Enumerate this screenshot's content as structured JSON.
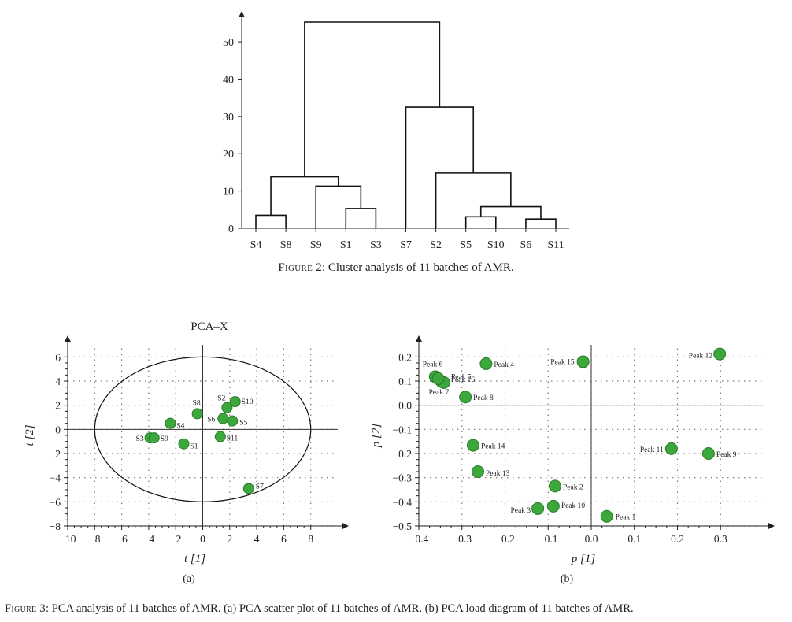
{
  "figure2": {
    "caption_label": "Figure 2",
    "caption_text": ": Cluster analysis of 11 batches of AMR.",
    "chart_data": {
      "type": "dendrogram",
      "leaves": [
        "S4",
        "S8",
        "S9",
        "S1",
        "S3",
        "S7",
        "S2",
        "S5",
        "S10",
        "S6",
        "S11"
      ],
      "ylim": [
        0,
        57
      ],
      "yticks": [
        0,
        10,
        20,
        30,
        40,
        50
      ],
      "merges": [
        {
          "a": "S4",
          "b": "S8",
          "height": 3.5
        },
        {
          "a": "S1",
          "b": "S3",
          "height": 5.3
        },
        {
          "a": "S5",
          "b": "S10",
          "height": 3.1
        },
        {
          "a": "S6",
          "b": "S11",
          "height": 2.5
        },
        {
          "a": "S5+S10",
          "b": "S6+S11",
          "height": 5.8
        },
        {
          "a": "S9",
          "b": "S1+S3",
          "height": 11.3
        },
        {
          "a": "S4+S8",
          "b": "S9+S1+S3",
          "height": 13.8
        },
        {
          "a": "S2",
          "b": "S5+S10+S6+S11",
          "height": 14.8
        },
        {
          "a": "S7",
          "b": "S2+S5+S10+S6+S11",
          "height": 32.5
        },
        {
          "a": "S4..S3",
          "b": "S7..S11",
          "height": 55.3
        }
      ]
    }
  },
  "figure3": {
    "caption_label": "Figure 3",
    "caption_text": ": PCA analysis of 11 batches of AMR. (a) PCA scatter plot of 11 batches of AMR. (b) PCA load diagram of 11 batches of AMR.",
    "panels": [
      {
        "panel_label": "(a)",
        "chart_data": {
          "type": "scatter",
          "title": "PCA–X",
          "xlabel": "t [1]",
          "ylabel": "t [2]",
          "xlim": [
            -10,
            10
          ],
          "ylim": [
            -8,
            7
          ],
          "xticks": [
            -10,
            -8,
            -6,
            -4,
            -2,
            0,
            2,
            4,
            6,
            8
          ],
          "yticks": [
            -8,
            -6,
            -4,
            -2,
            0,
            2,
            4,
            6
          ],
          "grid": "dotted",
          "ellipse": {
            "center": [
              0,
              0
            ],
            "rx": 8,
            "ry": 6
          },
          "points": [
            {
              "label": "S3",
              "x": -3.9,
              "y": -0.7
            },
            {
              "label": "S9",
              "x": -3.6,
              "y": -0.7
            },
            {
              "label": "S4",
              "x": -2.4,
              "y": 0.5
            },
            {
              "label": "S1",
              "x": -1.4,
              "y": -1.2
            },
            {
              "label": "S8",
              "x": -0.4,
              "y": 1.3
            },
            {
              "label": "S2",
              "x": 1.8,
              "y": 1.8
            },
            {
              "label": "S10",
              "x": 2.4,
              "y": 2.3
            },
            {
              "label": "S6",
              "x": 1.5,
              "y": 0.9
            },
            {
              "label": "S5",
              "x": 2.2,
              "y": 0.7
            },
            {
              "label": "S11",
              "x": 1.3,
              "y": -0.6
            },
            {
              "label": "S7",
              "x": 3.4,
              "y": -4.9
            }
          ]
        }
      },
      {
        "panel_label": "(b)",
        "chart_data": {
          "type": "scatter",
          "title": "",
          "xlabel": "p [1]",
          "ylabel": "p [2]",
          "xlim": [
            -0.4,
            0.4
          ],
          "ylim": [
            -0.5,
            0.25
          ],
          "xticks": [
            -0.4,
            -0.3,
            -0.2,
            -0.1,
            0.0,
            0.1,
            0.2,
            0.3
          ],
          "xtick_labels": [
            "−0.4",
            "−0.3",
            "−0.2",
            "−0.1",
            "0.0",
            "0.1",
            "0.2",
            "0.3"
          ],
          "yticks": [
            -0.5,
            -0.4,
            -0.3,
            -0.2,
            -0.1,
            0.0,
            0.1,
            0.2
          ],
          "ytick_labels": [
            "−0.5",
            "−0.4",
            "−0.3",
            "−0.2",
            "−0.1",
            "0.0",
            "0.1",
            "0.2"
          ],
          "grid": "dotted",
          "points": [
            {
              "label": "Peak 6",
              "x": -0.362,
              "y": 0.118
            },
            {
              "label": "Peak 5",
              "x": -0.347,
              "y": 0.098
            },
            {
              "label": "Peak 16",
              "x": -0.342,
              "y": 0.094
            },
            {
              "label": "Peak 7",
              "x": -0.355,
              "y": 0.11
            },
            {
              "label": "Peak 4",
              "x": -0.244,
              "y": 0.172
            },
            {
              "label": "Peak 8",
              "x": -0.292,
              "y": 0.034
            },
            {
              "label": "Peak 15",
              "x": -0.019,
              "y": 0.18
            },
            {
              "label": "Peak 12",
              "x": 0.298,
              "y": 0.212
            },
            {
              "label": "Peak 11",
              "x": 0.186,
              "y": -0.18
            },
            {
              "label": "Peak 9",
              "x": 0.272,
              "y": -0.2
            },
            {
              "label": "Peak 14",
              "x": -0.274,
              "y": -0.166
            },
            {
              "label": "Peak 13",
              "x": -0.263,
              "y": -0.275
            },
            {
              "label": "Peak 2",
              "x": -0.084,
              "y": -0.335
            },
            {
              "label": "Peak 10",
              "x": -0.088,
              "y": -0.418
            },
            {
              "label": "Peak 3",
              "x": -0.124,
              "y": -0.428
            },
            {
              "label": "Peak 1",
              "x": 0.036,
              "y": -0.46
            }
          ]
        }
      }
    ]
  },
  "colors": {
    "point_fill": "#3ca83c",
    "point_stroke": "#2a7a2a",
    "axis": "#222222",
    "grid": "#777777"
  }
}
